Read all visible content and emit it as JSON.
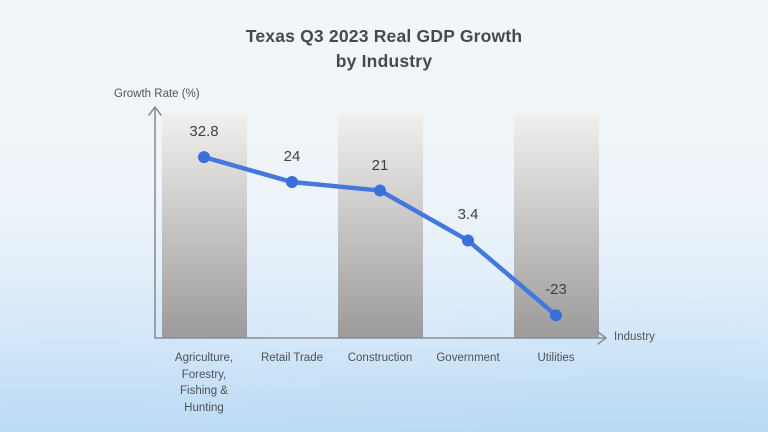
{
  "title": "Texas Q3 2023 Real GDP Growth\nby Industry",
  "chart_data": {
    "type": "line",
    "title": "Texas Q3 2023 Real GDP Growth by Industry",
    "xlabel": "Industry",
    "ylabel": "Growth Rate (%)",
    "categories": [
      "Agriculture,\nForestry,\nFishing &\nHunting",
      "Retail Trade",
      "Construction",
      "Government",
      "Utilities"
    ],
    "values": [
      32.8,
      24,
      21,
      3.4,
      -23
    ],
    "value_labels": [
      "32.8",
      "24",
      "21",
      "3.4",
      "-23"
    ],
    "ylim": [
      -31,
      48
    ],
    "grid": false,
    "legend": "none",
    "colors": {
      "line": "#4478df",
      "point": "#3a6fd8",
      "axis": "#8a8f94",
      "band_top": "#f1f0ee",
      "band_bottom": "#9c9b99",
      "title_text": "#474a4d",
      "label_text": "#4c5257",
      "value_text": "#3e4347"
    },
    "band_columns": [
      0,
      2,
      4
    ]
  }
}
